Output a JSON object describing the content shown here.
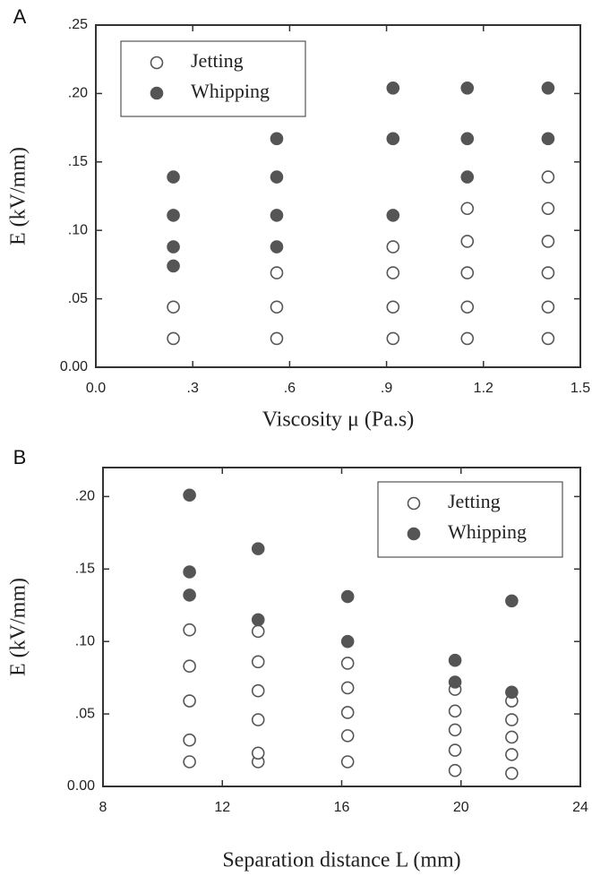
{
  "chart_data": [
    {
      "type": "scatter",
      "panel": "A",
      "xlabel": "Viscosity μ (Pa.s)",
      "ylabel": "E (kV/mm)",
      "xlim": [
        0,
        1.5
      ],
      "ylim": [
        0,
        0.25
      ],
      "xticks": [
        {
          "value": 0,
          "label": "0.0"
        },
        {
          "value": 0.3,
          "label": ".3"
        },
        {
          "value": 0.6,
          "label": ".6"
        },
        {
          "value": 0.9,
          "label": ".9"
        },
        1.2,
        1.5
      ],
      "yticks": [
        {
          "value": 0,
          "label": "0.00"
        },
        {
          "value": 0.05,
          "label": ".05"
        },
        {
          "value": 0.1,
          "label": ".10"
        },
        {
          "value": 0.15,
          "label": ".15"
        },
        {
          "value": 0.2,
          "label": ".20"
        },
        {
          "value": 0.25,
          "label": ".25"
        }
      ],
      "legend": "upper left",
      "series": [
        {
          "name": "Jetting",
          "color": "#555555",
          "marker": "open",
          "x": [
            0.24,
            0.24,
            0.56,
            0.56,
            0.56,
            0.92,
            0.92,
            0.92,
            0.92,
            1.15,
            1.15,
            1.15,
            1.15,
            1.15,
            1.4,
            1.4,
            1.4,
            1.4,
            1.4,
            1.4
          ],
          "values": [
            0.021,
            0.044,
            0.021,
            0.044,
            0.069,
            0.021,
            0.044,
            0.069,
            0.088,
            0.021,
            0.044,
            0.069,
            0.092,
            0.116,
            0.021,
            0.044,
            0.069,
            0.092,
            0.116,
            0.139
          ]
        },
        {
          "name": "Whipping",
          "color": "#555555",
          "marker": "filled",
          "x": [
            0.24,
            0.24,
            0.24,
            0.24,
            0.56,
            0.56,
            0.56,
            0.56,
            0.92,
            0.92,
            0.92,
            1.15,
            1.15,
            1.15,
            1.4,
            1.4
          ],
          "values": [
            0.074,
            0.088,
            0.111,
            0.139,
            0.088,
            0.111,
            0.139,
            0.167,
            0.111,
            0.167,
            0.204,
            0.139,
            0.167,
            0.204,
            0.167,
            0.204
          ]
        }
      ]
    },
    {
      "type": "scatter",
      "panel": "B",
      "xlabel": "Separation distance L (mm)",
      "ylabel": "E (kV/mm)",
      "xlim": [
        8,
        24
      ],
      "ylim": [
        0,
        0.22
      ],
      "xticks": [
        8,
        12,
        16,
        20,
        24
      ],
      "yticks": [
        {
          "value": 0,
          "label": "0.00"
        },
        {
          "value": 0.05,
          "label": ".05"
        },
        {
          "value": 0.1,
          "label": ".10"
        },
        {
          "value": 0.15,
          "label": ".15"
        },
        {
          "value": 0.2,
          "label": ".20"
        }
      ],
      "legend": "upper right",
      "series": [
        {
          "name": "Jetting",
          "color": "#555555",
          "marker": "open",
          "x": [
            10.9,
            10.9,
            10.9,
            10.9,
            10.9,
            13.2,
            13.2,
            13.2,
            13.2,
            13.2,
            13.2,
            16.2,
            16.2,
            16.2,
            16.2,
            16.2,
            19.8,
            19.8,
            19.8,
            19.8,
            19.8,
            21.7,
            21.7,
            21.7,
            21.7,
            21.7
          ],
          "values": [
            0.017,
            0.032,
            0.059,
            0.083,
            0.108,
            0.017,
            0.023,
            0.046,
            0.066,
            0.086,
            0.107,
            0.017,
            0.035,
            0.051,
            0.068,
            0.085,
            0.011,
            0.025,
            0.039,
            0.052,
            0.067,
            0.009,
            0.022,
            0.034,
            0.046,
            0.059
          ]
        },
        {
          "name": "Whipping",
          "color": "#555555",
          "marker": "filled",
          "x": [
            10.9,
            10.9,
            10.9,
            13.2,
            13.2,
            16.2,
            16.2,
            19.8,
            19.8,
            21.7,
            21.7
          ],
          "values": [
            0.132,
            0.148,
            0.201,
            0.115,
            0.164,
            0.1,
            0.131,
            0.072,
            0.087,
            0.065,
            0.128
          ]
        }
      ]
    }
  ]
}
